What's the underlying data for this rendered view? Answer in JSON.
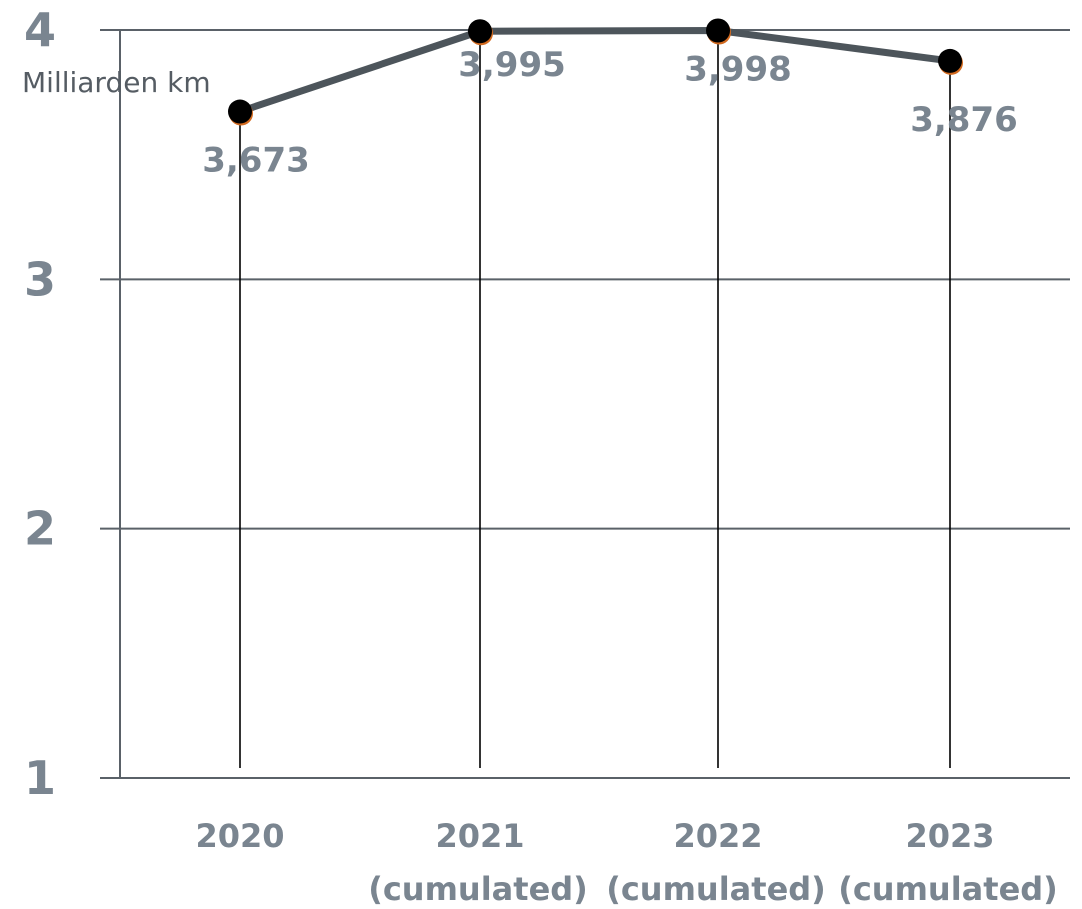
{
  "chart_data": {
    "type": "line",
    "title": "",
    "xlabel": "",
    "ylabel": "Milliarden km",
    "ylim": [
      1,
      4
    ],
    "y_ticks": [
      "1",
      "2",
      "3",
      "4"
    ],
    "grid": true,
    "categories": [
      {
        "line1": "2020",
        "line2": ""
      },
      {
        "line1": "2021",
        "line2": "(cumulated)"
      },
      {
        "line1": "2022",
        "line2": "(cumulated)"
      },
      {
        "line1": "2023",
        "line2": "(cumulated)"
      }
    ],
    "series": [
      {
        "values": [
          3.673,
          3.995,
          3.998,
          3.876
        ],
        "labels": [
          "3,673",
          "3,995",
          "3,998",
          "3,876"
        ]
      }
    ],
    "colors": {
      "line": "#4d555b",
      "marker": "#000000",
      "marker_shadow": "#d2691e",
      "grid": "#5a6168",
      "tick_text": "#7a8590",
      "label_text": "#555c63"
    }
  }
}
